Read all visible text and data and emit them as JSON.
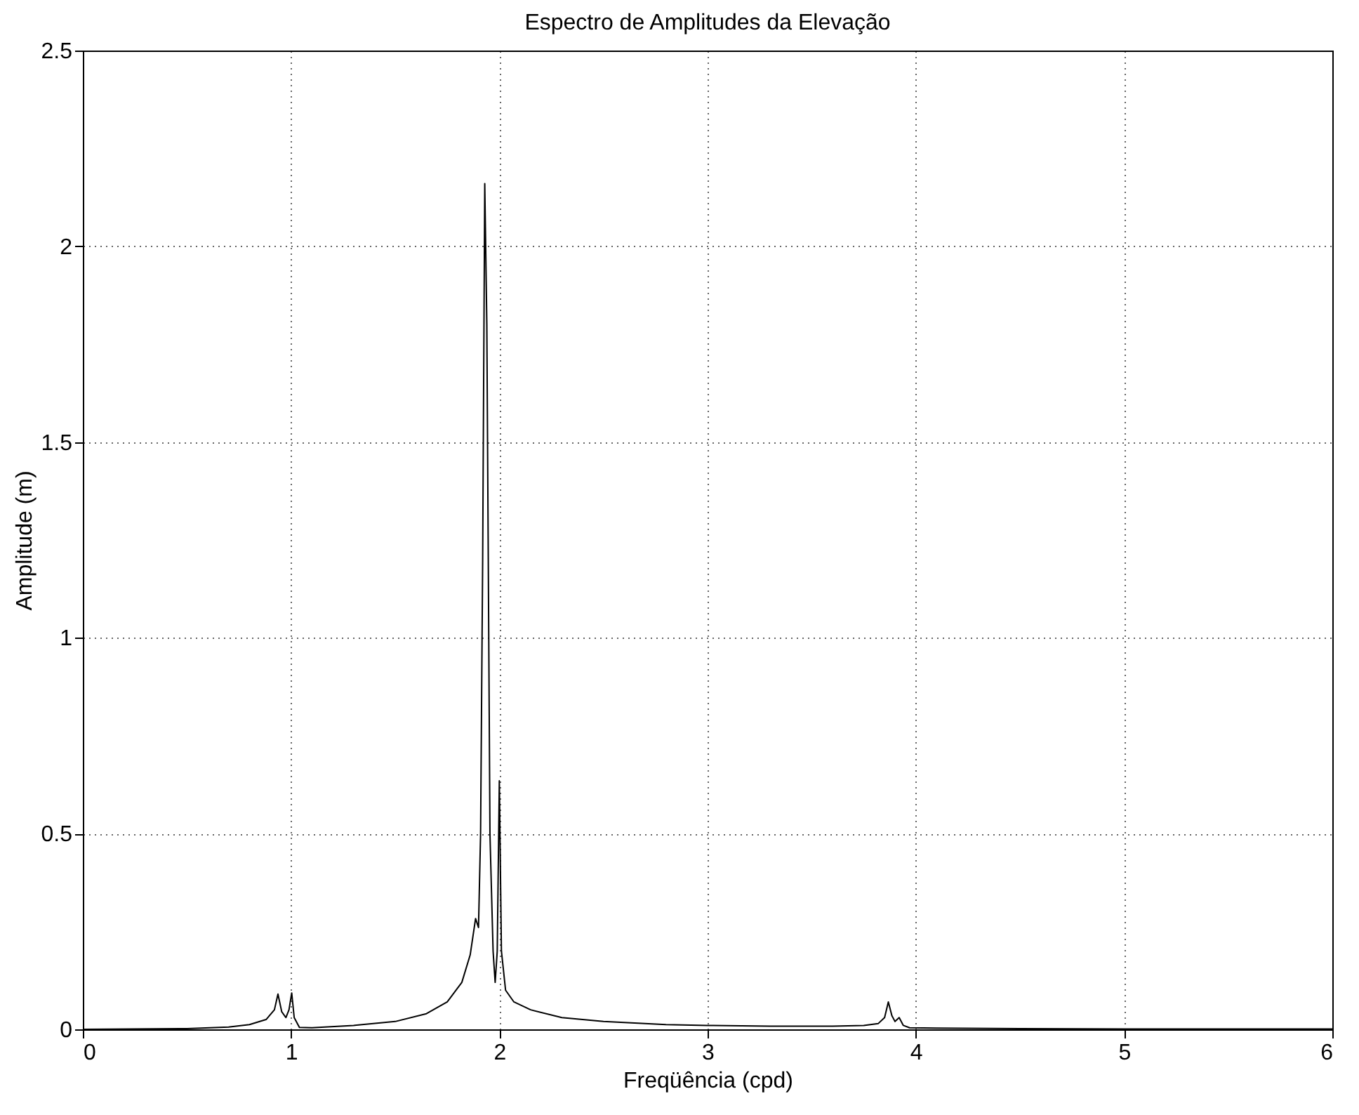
{
  "chart_data": {
    "type": "line",
    "title": "Espectro de Amplitudes da Elevação",
    "xlabel": "Freqüência (cpd)",
    "ylabel": "Amplitude (m)",
    "x": [
      0,
      0.5,
      0.7,
      0.8,
      0.88,
      0.92,
      0.937,
      0.955,
      0.975,
      0.99,
      1.003,
      1.015,
      1.04,
      1.1,
      1.3,
      1.5,
      1.65,
      1.75,
      1.82,
      1.86,
      1.886,
      1.9,
      1.91,
      1.92,
      1.93,
      1.94,
      1.955,
      1.97,
      1.98,
      1.99,
      2.0,
      2.01,
      2.03,
      2.07,
      2.15,
      2.3,
      2.5,
      2.8,
      3.0,
      3.3,
      3.6,
      3.75,
      3.82,
      3.85,
      3.868,
      3.885,
      3.9,
      3.92,
      3.94,
      3.97,
      4.1,
      4.5,
      5.0,
      5.3,
      6
    ],
    "values": [
      0,
      0.002,
      0.006,
      0.012,
      0.025,
      0.05,
      0.09,
      0.045,
      0.03,
      0.05,
      0.093,
      0.03,
      0.005,
      0.004,
      0.01,
      0.02,
      0.04,
      0.07,
      0.12,
      0.19,
      0.283,
      0.26,
      0.5,
      1.2,
      2.16,
      1.8,
      0.5,
      0.2,
      0.12,
      0.2,
      0.635,
      0.2,
      0.1,
      0.07,
      0.05,
      0.03,
      0.02,
      0.012,
      0.01,
      0.008,
      0.008,
      0.01,
      0.015,
      0.03,
      0.07,
      0.035,
      0.02,
      0.03,
      0.01,
      0.004,
      0.003,
      0.002,
      0.001,
      0.001,
      0.001
    ],
    "color": "#000000",
    "xlim": [
      0,
      6
    ],
    "ylim": [
      0,
      2.5
    ],
    "xticks": [
      0,
      1,
      2,
      3,
      4,
      5,
      6
    ],
    "yticks": [
      0,
      0.5,
      1,
      1.5,
      2,
      2.5
    ],
    "grid": true,
    "line_style": "solid"
  }
}
